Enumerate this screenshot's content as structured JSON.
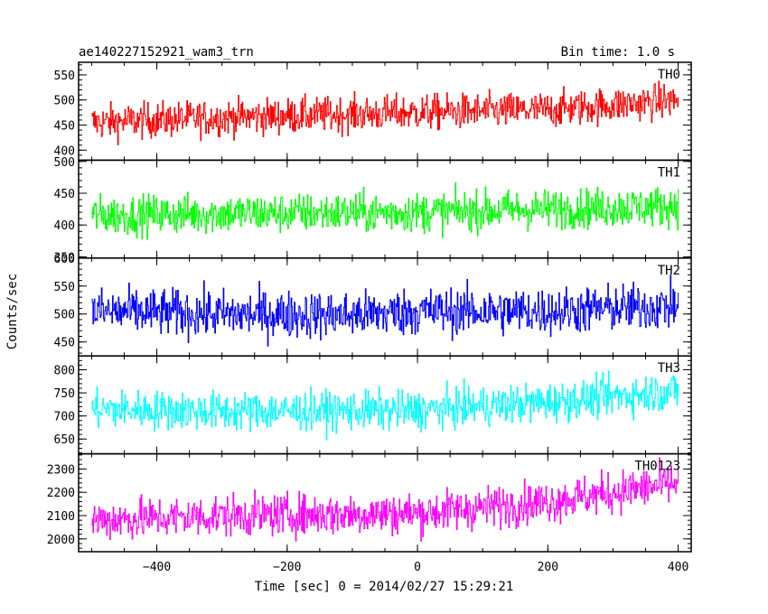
{
  "header": {
    "left_title": "ae140227152921_wam3_trn",
    "right_title": "Bin time: 1.0 s"
  },
  "chart_data": {
    "type": "line",
    "title": "ae140227152921_wam3_trn",
    "bin_time": "Bin time: 1.0 s",
    "xlabel": "Time [sec] 0 = 2014/02/27 15:29:21",
    "ylabel": "Counts/sec",
    "xlim": [
      -520,
      420
    ],
    "xticks": [
      -400,
      -200,
      0,
      200,
      400
    ],
    "xtick_labels": [
      "−400",
      "−200",
      "0",
      "200",
      "400"
    ],
    "x_range": [
      -500,
      400
    ],
    "panels": [
      {
        "name": "TH0",
        "color": "#ff0000",
        "ylim": [
          380,
          575
        ],
        "yticks": [
          400,
          450,
          500,
          550
        ],
        "trend": [
          [
            -500,
            455
          ],
          [
            -300,
            465
          ],
          [
            0,
            475
          ],
          [
            200,
            480
          ],
          [
            400,
            500
          ]
        ],
        "noise_amplitude": 32
      },
      {
        "name": "TH1",
        "color": "#00ff00",
        "ylim": [
          348,
          502
        ],
        "yticks": [
          350,
          400,
          450,
          500
        ],
        "trend": [
          [
            -500,
            415
          ],
          [
            -300,
            418
          ],
          [
            0,
            420
          ],
          [
            200,
            425
          ],
          [
            400,
            430
          ]
        ],
        "noise_amplitude": 28
      },
      {
        "name": "TH2",
        "color": "#0000ff",
        "ylim": [
          425,
          600
        ],
        "yticks": [
          450,
          500,
          550,
          600
        ],
        "trend": [
          [
            -500,
            505
          ],
          [
            -300,
            500
          ],
          [
            -100,
            498
          ],
          [
            0,
            505
          ],
          [
            200,
            505
          ],
          [
            400,
            515
          ]
        ],
        "noise_amplitude": 38
      },
      {
        "name": "TH3",
        "color": "#00ffff",
        "ylim": [
          618,
          830
        ],
        "yticks": [
          650,
          700,
          750,
          800
        ],
        "trend": [
          [
            -500,
            715
          ],
          [
            -300,
            710
          ],
          [
            0,
            712
          ],
          [
            200,
            730
          ],
          [
            400,
            755
          ]
        ],
        "noise_amplitude": 38
      },
      {
        "name": "TH0123",
        "color": "#ff00ff",
        "ylim": [
          1945,
          2365
        ],
        "yticks": [
          2000,
          2100,
          2200,
          2300
        ],
        "trend": [
          [
            -500,
            2080
          ],
          [
            -300,
            2100
          ],
          [
            0,
            2110
          ],
          [
            200,
            2160
          ],
          [
            400,
            2240
          ]
        ],
        "noise_amplitude": 80
      }
    ]
  }
}
